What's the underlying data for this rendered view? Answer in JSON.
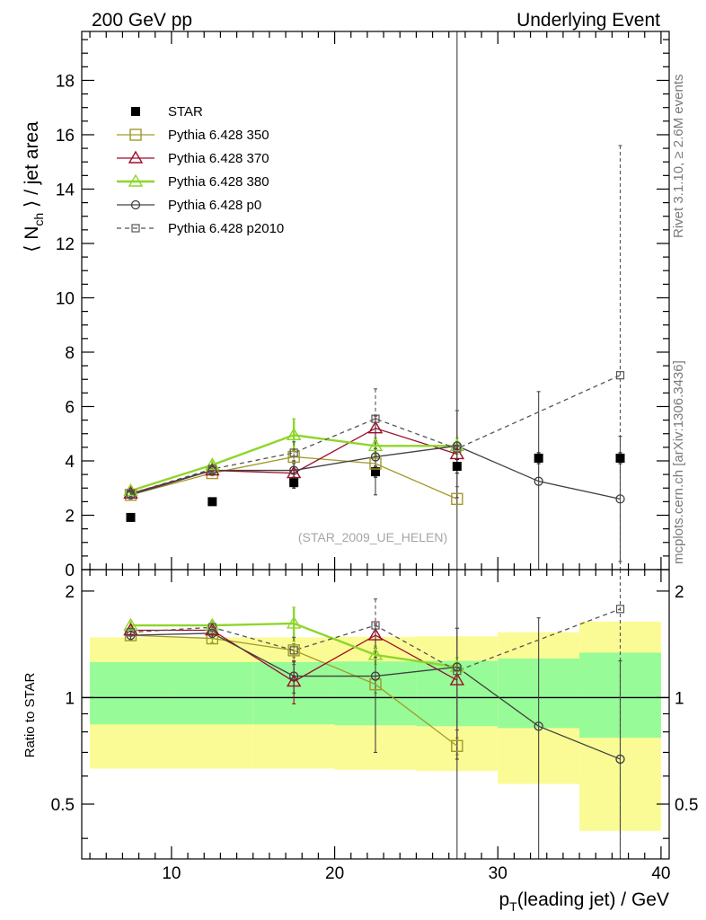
{
  "header": {
    "left": "200 GeV pp",
    "right": "Underlying Event"
  },
  "side": {
    "rivet": "Rivet 3.1.10, ≥ 2.6M events",
    "mcplots": "mcplots.cern.ch [arXiv:1306.3436]"
  },
  "chart_data": [
    {
      "panel": "main",
      "type": "scatter",
      "ylabel": "⟨ N_ch ⟩ / jet area",
      "xlim": [
        4.5,
        40.5
      ],
      "ylim": [
        0,
        19.8
      ],
      "yticks": [
        0,
        2,
        4,
        6,
        8,
        10,
        12,
        14,
        16,
        18
      ],
      "watermark": "(STAR_2009_UE_HELEN)",
      "legend_position": "top-left",
      "series": [
        {
          "name": "STAR",
          "color": "#000000",
          "marker": "filled-square",
          "x": [
            7.5,
            12.5,
            17.5,
            22.5,
            27.5,
            32.5,
            37.5
          ],
          "y": [
            1.92,
            2.5,
            3.2,
            3.6,
            3.8,
            4.1,
            4.1
          ],
          "yerr": [
            0.1,
            0.12,
            0.2,
            0.2,
            0.25,
            0.2,
            0.2
          ]
        },
        {
          "name": "Pythia 6.428 350",
          "color": "#a09a28",
          "marker": "open-square",
          "line": "solid",
          "x": [
            7.5,
            12.5,
            17.5,
            22.5,
            27.5
          ],
          "y": [
            2.75,
            3.55,
            4.15,
            3.9,
            2.6
          ],
          "yerr": [
            0.1,
            0.1,
            0.25,
            0.3,
            0.2
          ]
        },
        {
          "name": "Pythia 6.428 370",
          "color": "#9b0d2a",
          "marker": "open-triangle",
          "line": "solid",
          "x": [
            7.5,
            12.5,
            17.5,
            22.5,
            27.5
          ],
          "y": [
            2.8,
            3.65,
            3.55,
            5.2,
            4.25
          ],
          "yerr": [
            0.1,
            0.15,
            0.45,
            0.45,
            1.6
          ]
        },
        {
          "name": "Pythia 6.428 380",
          "color": "#8ed62a",
          "marker": "open-triangle",
          "line": "solid",
          "x": [
            7.5,
            12.5,
            17.5,
            22.5,
            27.5
          ],
          "y": [
            2.9,
            3.85,
            4.95,
            4.55,
            4.55
          ],
          "yerr": [
            0.1,
            0.15,
            0.6,
            0.3,
            0.3
          ]
        },
        {
          "name": "Pythia 6.428 p0",
          "color": "#404040",
          "marker": "open-circle",
          "line": "solid",
          "x": [
            7.5,
            12.5,
            17.5,
            22.5,
            27.5,
            32.5,
            37.5
          ],
          "y": [
            2.75,
            3.65,
            3.65,
            4.15,
            4.55,
            3.25,
            2.6
          ],
          "yerr": [
            0.1,
            0.1,
            0.35,
            1.4,
            25,
            3.3,
            2.3
          ]
        },
        {
          "name": "Pythia 6.428 p2010",
          "color": "#555555",
          "marker": "open-square-small",
          "line": "dashed",
          "x": [
            7.5,
            12.5,
            17.5,
            22.5,
            27.5,
            37.5
          ],
          "y": [
            2.8,
            3.7,
            4.3,
            5.55,
            4.45,
            7.15
          ],
          "yerr": [
            0.1,
            0.1,
            0.4,
            1.1,
            1.4,
            8.45
          ]
        }
      ]
    },
    {
      "panel": "ratio",
      "type": "scatter",
      "ylabel": "Ratio to STAR",
      "xlabel": "p_T(leading jet) / GeV",
      "xlim": [
        4.5,
        40.5
      ],
      "ylim": [
        0.35,
        2.3
      ],
      "yticks": [
        0.5,
        1,
        2
      ],
      "xticks": [
        10,
        20,
        30,
        40
      ],
      "bands": [
        {
          "x0": 5,
          "x1": 10,
          "inner": [
            0.84,
            1.26
          ],
          "outer": [
            0.63,
            1.48
          ]
        },
        {
          "x0": 10,
          "x1": 15,
          "inner": [
            0.84,
            1.26
          ],
          "outer": [
            0.63,
            1.48
          ]
        },
        {
          "x0": 15,
          "x1": 20,
          "inner": [
            0.84,
            1.26
          ],
          "outer": [
            0.63,
            1.48
          ]
        },
        {
          "x0": 20,
          "x1": 25,
          "inner": [
            0.835,
            1.265
          ],
          "outer": [
            0.625,
            1.485
          ]
        },
        {
          "x0": 25,
          "x1": 30,
          "inner": [
            0.83,
            1.27
          ],
          "outer": [
            0.62,
            1.49
          ]
        },
        {
          "x0": 30,
          "x1": 35,
          "inner": [
            0.82,
            1.29
          ],
          "outer": [
            0.57,
            1.53
          ]
        },
        {
          "x0": 35,
          "x1": 40,
          "inner": [
            0.77,
            1.34
          ],
          "outer": [
            0.42,
            1.64
          ]
        }
      ],
      "series": [
        {
          "name": "Pythia 6.428 350",
          "x": [
            7.5,
            12.5,
            17.5,
            22.5,
            27.5
          ],
          "y": [
            1.5,
            1.47,
            1.36,
            1.09,
            0.73
          ],
          "yerr": [
            0.04,
            0.04,
            0.06,
            0.06,
            0.04
          ]
        },
        {
          "name": "Pythia 6.428 370",
          "x": [
            7.5,
            12.5,
            17.5,
            22.5,
            27.5
          ],
          "y": [
            1.55,
            1.55,
            1.11,
            1.5,
            1.12
          ],
          "yerr": [
            0.04,
            0.05,
            0.15,
            0.12,
            0.45
          ]
        },
        {
          "name": "Pythia 6.428 380",
          "x": [
            7.5,
            12.5,
            17.5,
            22.5,
            27.5
          ],
          "y": [
            1.6,
            1.6,
            1.62,
            1.32,
            1.22
          ],
          "yerr": [
            0.04,
            0.05,
            0.18,
            0.08,
            0.08
          ]
        },
        {
          "name": "Pythia 6.428 p0",
          "x": [
            7.5,
            12.5,
            17.5,
            22.5,
            27.5,
            32.5,
            37.5
          ],
          "y": [
            1.5,
            1.52,
            1.15,
            1.15,
            1.22,
            0.83,
            0.67
          ],
          "yerr": [
            0.04,
            0.04,
            0.12,
            0.45,
            6,
            0.85,
            0.6
          ]
        },
        {
          "name": "Pythia 6.428 p2010",
          "x": [
            7.5,
            12.5,
            17.5,
            22.5,
            27.5,
            37.5
          ],
          "y": [
            1.53,
            1.58,
            1.36,
            1.6,
            1.19,
            1.78
          ],
          "yerr": [
            0.04,
            0.04,
            0.12,
            0.3,
            0.38,
            2
          ]
        }
      ]
    }
  ]
}
